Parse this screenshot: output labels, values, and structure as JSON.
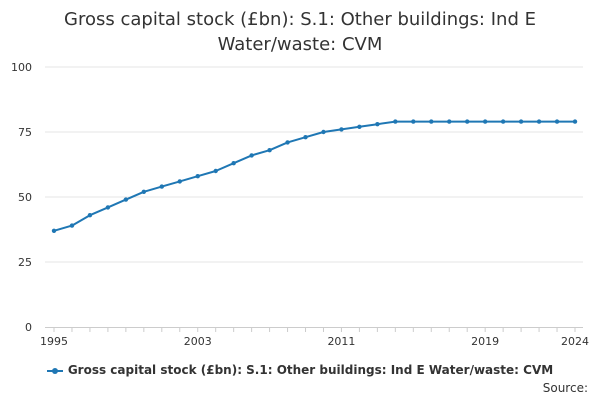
{
  "title": "Gross capital stock (£bn): S.1: Other buildings: Ind E Water/waste: CVM",
  "source_label": "Source:",
  "colors": {
    "series": "#1f77b4",
    "gridline": "#e6e6e6",
    "axis": "#cccccc"
  },
  "chart_data": {
    "type": "line",
    "title": "Gross capital stock (£bn): S.1: Other buildings: Ind E Water/waste: CVM",
    "xlabel": "",
    "ylabel": "",
    "xlim": [
      1995,
      2024
    ],
    "ylim": [
      0,
      100
    ],
    "x_ticks": [
      1995,
      2003,
      2011,
      2019,
      2024
    ],
    "y_ticks": [
      0,
      25,
      50,
      75,
      100
    ],
    "grid": "horizontal",
    "legend": "bottom",
    "x": [
      1995,
      1996,
      1997,
      1998,
      1999,
      2000,
      2001,
      2002,
      2003,
      2004,
      2005,
      2006,
      2007,
      2008,
      2009,
      2010,
      2011,
      2012,
      2013,
      2014,
      2015,
      2016,
      2017,
      2018,
      2019,
      2020,
      2021,
      2022,
      2023,
      2024
    ],
    "series": [
      {
        "name": "Gross capital stock (£bn): S.1: Other buildings: Ind E Water/waste: CVM",
        "values": [
          37,
          39,
          43,
          46,
          49,
          52,
          54,
          56,
          58,
          60,
          63,
          66,
          68,
          71,
          73,
          75,
          76,
          77,
          78,
          79,
          79,
          79,
          79,
          79,
          79,
          79,
          79,
          79,
          79,
          79
        ]
      }
    ]
  }
}
